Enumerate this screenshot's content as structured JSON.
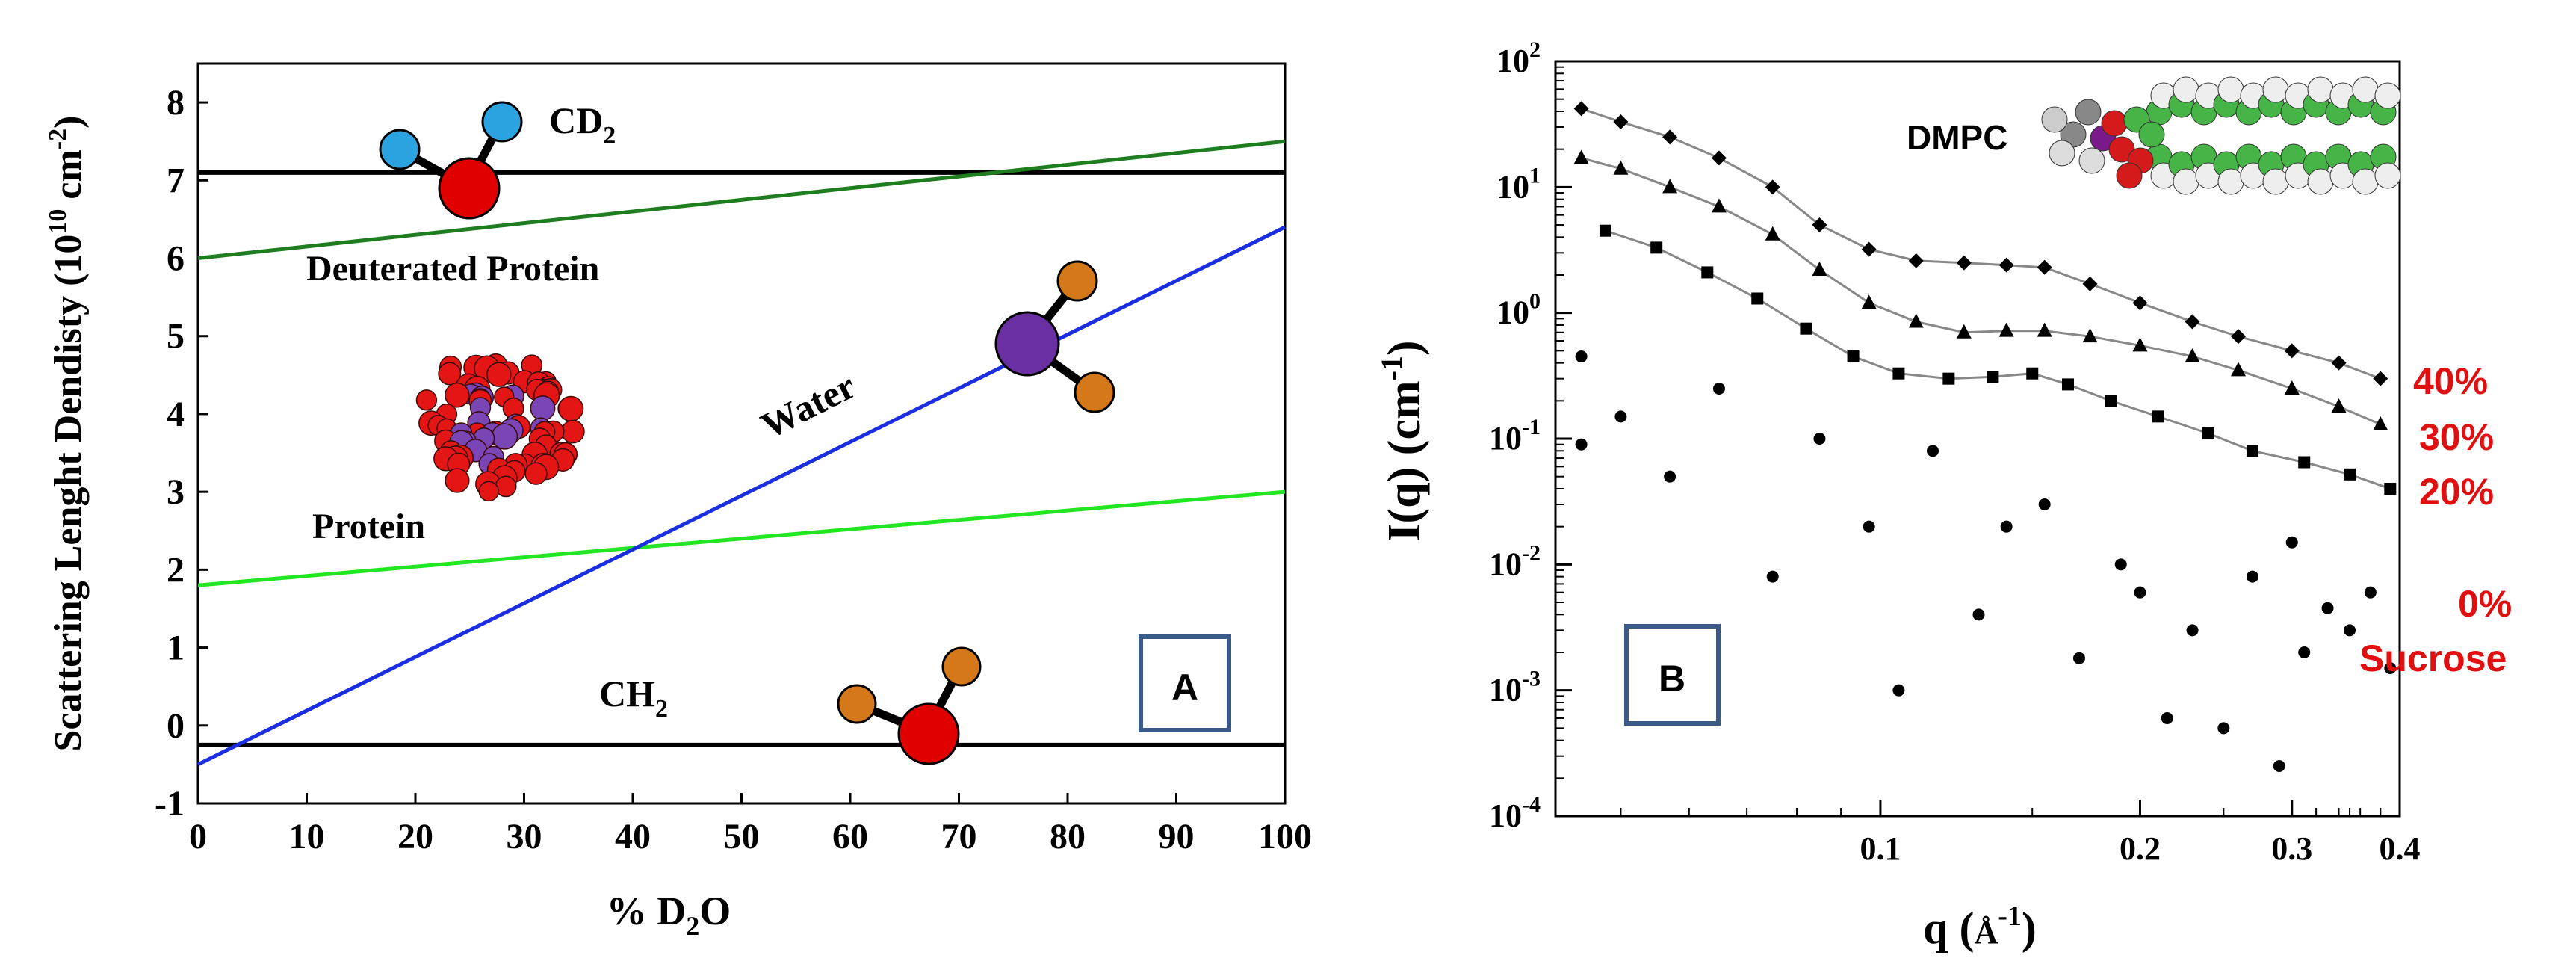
{
  "chart_data": [
    {
      "panel": "A",
      "type": "line",
      "xlabel_prefix": "% D",
      "xlabel_sub": "2",
      "xlabel_suffix": "O",
      "ylabel_prefix": "Scattering Lenght Dendisty (10",
      "ylabel_sup1": "10",
      "ylabel_mid": " cm",
      "ylabel_sup2": "-2",
      "ylabel_suffix": ")",
      "xlim": [
        0,
        100
      ],
      "ylim": [
        -1,
        8.5
      ],
      "xticks": [
        0,
        10,
        20,
        30,
        40,
        50,
        60,
        70,
        80,
        90,
        100
      ],
      "yticks": [
        -1,
        0,
        1,
        2,
        3,
        4,
        5,
        6,
        7,
        8
      ],
      "series": [
        {
          "name": "CD2",
          "color": "#000000",
          "x": [
            0,
            100
          ],
          "y": [
            7.1,
            7.1
          ]
        },
        {
          "name": "CH2",
          "color": "#000000",
          "x": [
            0,
            100
          ],
          "y": [
            -0.25,
            -0.25
          ]
        },
        {
          "name": "Deuterated Protein",
          "color": "#1e7d1e",
          "x": [
            0,
            100
          ],
          "y": [
            6.0,
            7.5
          ]
        },
        {
          "name": "Protein",
          "color": "#22e622",
          "x": [
            0,
            100
          ],
          "y": [
            1.8,
            3.0
          ]
        },
        {
          "name": "Water",
          "color": "#1a2ee0",
          "x": [
            0,
            100
          ],
          "y": [
            -0.5,
            6.4
          ]
        }
      ],
      "annotations": {
        "cd2_text": "CD",
        "cd2_sub": "2",
        "ch2_text": "CH",
        "ch2_sub": "2",
        "deuterated_protein": "Deuterated Protein",
        "protein": "Protein",
        "water": "Water",
        "panel_label": "A"
      },
      "colors": {
        "oxygen": "#e00000",
        "deuterium": "#2ba3e0",
        "hydrogen": "#d4781a",
        "heavy_water_o": "#6a2fa0",
        "protein_red": "#e41515",
        "protein_purple": "#7a45b5"
      }
    },
    {
      "panel": "B",
      "type": "scatter",
      "xscale": "log",
      "yscale": "log",
      "xlabel_prefix": "q (",
      "xlabel_unit": "Å",
      "xlabel_sup": "-1",
      "xlabel_suffix": ")",
      "ylabel_prefix": "I(q) (cm",
      "ylabel_sup": "-1",
      "ylabel_suffix": ")",
      "xlim": [
        0.042,
        0.4
      ],
      "ylim": [
        0.0001,
        100
      ],
      "xtick_labels": [
        "0.1",
        "0.2",
        "0.3",
        "0.4"
      ],
      "xtick_values": [
        0.1,
        0.2,
        0.3,
        0.4
      ],
      "ytick_exponents": [
        "2",
        "1",
        "0",
        "-1",
        "-2",
        "-3",
        "-4"
      ],
      "ytick_base": "10",
      "series": [
        {
          "name": "40%",
          "marker": "diamond",
          "q": [
            0.045,
            0.05,
            0.057,
            0.065,
            0.075,
            0.085,
            0.097,
            0.11,
            0.125,
            0.14,
            0.155,
            0.175,
            0.2,
            0.23,
            0.26,
            0.3,
            0.34,
            0.38
          ],
          "I": [
            42,
            33,
            25,
            17,
            10,
            5,
            3.2,
            2.6,
            2.5,
            2.4,
            2.3,
            1.7,
            1.2,
            0.85,
            0.65,
            0.5,
            0.4,
            0.3
          ]
        },
        {
          "name": "30%",
          "marker": "triangle",
          "q": [
            0.045,
            0.05,
            0.057,
            0.065,
            0.075,
            0.085,
            0.097,
            0.11,
            0.125,
            0.14,
            0.155,
            0.175,
            0.2,
            0.23,
            0.26,
            0.3,
            0.34,
            0.38
          ],
          "I": [
            17,
            14,
            10,
            7,
            4.2,
            2.2,
            1.2,
            0.85,
            0.7,
            0.72,
            0.72,
            0.65,
            0.55,
            0.45,
            0.35,
            0.25,
            0.18,
            0.13
          ]
        },
        {
          "name": "20%",
          "marker": "square",
          "q": [
            0.048,
            0.055,
            0.063,
            0.072,
            0.082,
            0.093,
            0.105,
            0.12,
            0.135,
            0.15,
            0.165,
            0.185,
            0.21,
            0.24,
            0.27,
            0.31,
            0.35,
            0.39
          ],
          "I": [
            4.5,
            3.3,
            2.1,
            1.3,
            0.75,
            0.45,
            0.33,
            0.3,
            0.31,
            0.33,
            0.27,
            0.2,
            0.15,
            0.11,
            0.08,
            0.065,
            0.052,
            0.04
          ]
        },
        {
          "name": "0% Sucrose",
          "marker": "circle",
          "q": [
            0.045,
            0.045,
            0.05,
            0.057,
            0.065,
            0.075,
            0.085,
            0.097,
            0.105,
            0.115,
            0.13,
            0.14,
            0.155,
            0.17,
            0.19,
            0.2,
            0.215,
            0.23,
            0.25,
            0.27,
            0.29,
            0.3,
            0.31,
            0.33,
            0.35,
            0.37,
            0.39
          ],
          "I": [
            0.45,
            0.09,
            0.15,
            0.05,
            0.25,
            0.008,
            0.1,
            0.02,
            0.001,
            0.08,
            0.004,
            0.02,
            0.03,
            0.0018,
            0.01,
            0.006,
            0.0006,
            0.003,
            0.0005,
            0.008,
            0.00025,
            0.015,
            0.002,
            0.0045,
            0.003,
            0.006,
            0.0015
          ]
        }
      ],
      "model_fits": [
        {
          "q": [
            0.045,
            0.05,
            0.057,
            0.065,
            0.075,
            0.085,
            0.097,
            0.11,
            0.125,
            0.14,
            0.155,
            0.175,
            0.2,
            0.23,
            0.26,
            0.3,
            0.34,
            0.38
          ],
          "I": [
            42,
            33,
            25,
            17,
            10,
            5,
            3.2,
            2.6,
            2.5,
            2.4,
            2.3,
            1.7,
            1.2,
            0.85,
            0.65,
            0.5,
            0.4,
            0.3
          ]
        },
        {
          "q": [
            0.045,
            0.05,
            0.057,
            0.065,
            0.075,
            0.085,
            0.097,
            0.11,
            0.125,
            0.14,
            0.155,
            0.175,
            0.2,
            0.23,
            0.26,
            0.3,
            0.34,
            0.38
          ],
          "I": [
            17,
            14,
            10,
            7,
            4.2,
            2.2,
            1.2,
            0.85,
            0.7,
            0.72,
            0.72,
            0.65,
            0.55,
            0.45,
            0.35,
            0.25,
            0.18,
            0.13
          ]
        },
        {
          "q": [
            0.048,
            0.055,
            0.063,
            0.072,
            0.082,
            0.093,
            0.105,
            0.12,
            0.135,
            0.15,
            0.165,
            0.185,
            0.21,
            0.24,
            0.27,
            0.31,
            0.35,
            0.39
          ],
          "I": [
            4.5,
            3.3,
            2.1,
            1.3,
            0.75,
            0.45,
            0.33,
            0.3,
            0.31,
            0.33,
            0.27,
            0.2,
            0.15,
            0.11,
            0.08,
            0.065,
            0.052,
            0.04
          ]
        }
      ],
      "series_labels": {
        "s40": "40%",
        "s30": "30%",
        "s20": "20%",
        "s0": "0%",
        "sucrose": "Sucrose"
      },
      "annotations": {
        "dmpc": "DMPC",
        "panel_label": "B"
      },
      "colors": {
        "series_label": "#e01010",
        "frame": "#3a5a8a"
      }
    }
  ]
}
